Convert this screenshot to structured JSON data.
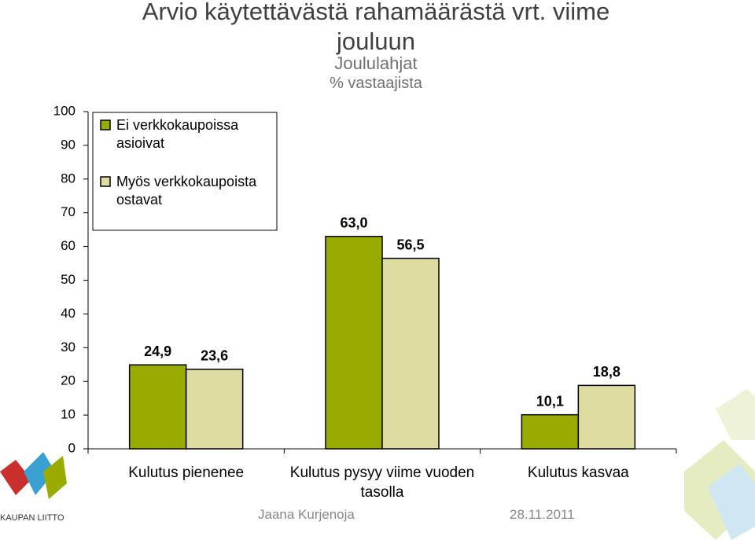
{
  "chart_data": {
    "type": "bar",
    "title": "Arvio käytettävästä rahamäärästä vrt. viime jouluun",
    "subtitle": "Joululahjat",
    "y_label": "% vastaajista",
    "categories": [
      "Kulutus pienenee",
      "Kulutus pysyy viime vuoden tasolla",
      "Kulutus kasvaa"
    ],
    "series": [
      {
        "name": "Ei verkkokaupoissa asioivat",
        "color": "#9aab00",
        "values": [
          24.9,
          63.0,
          10.1
        ],
        "value_labels": [
          "24,9",
          "63,0",
          "10,1"
        ]
      },
      {
        "name": "Myös verkkokaupoista ostavat",
        "color": "#dedca0",
        "values": [
          23.6,
          56.5,
          18.8
        ],
        "value_labels": [
          "23,6",
          "56,5",
          "18,8"
        ]
      }
    ],
    "ylim": [
      0,
      100
    ],
    "yticks": [
      0,
      10,
      20,
      30,
      40,
      50,
      60,
      70,
      80,
      90,
      100
    ],
    "grid": false,
    "legend": "top-left"
  },
  "footer": {
    "author": "Jaana Kurjenoja",
    "date": "28.11.2011",
    "logo": "KAUPAN LIITTO"
  }
}
